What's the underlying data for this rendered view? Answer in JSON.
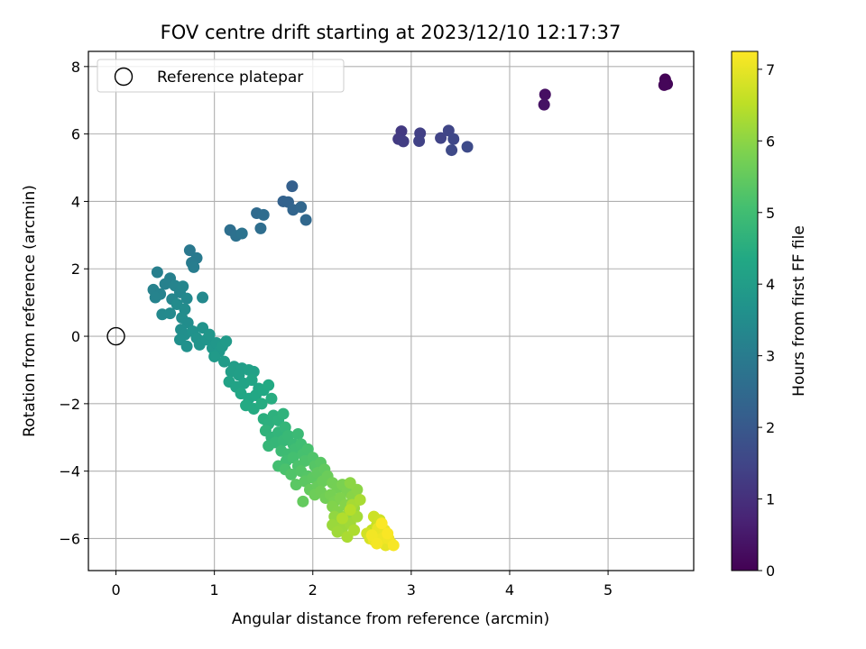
{
  "chart_data": {
    "type": "scatter",
    "title": "FOV centre drift starting at 2023/12/10 12:17:37",
    "xlabel": "Angular distance from reference (arcmin)",
    "ylabel": "Rotation from reference (arcmin)",
    "xlim": [
      -0.28,
      5.87
    ],
    "ylim": [
      -6.95,
      8.45
    ],
    "xticks": [
      0,
      1,
      2,
      3,
      4,
      5
    ],
    "yticks": [
      -6,
      -4,
      -2,
      0,
      2,
      4,
      6,
      8
    ],
    "grid": true,
    "legend": {
      "position": "top-left",
      "entries": [
        "Reference platepar"
      ]
    },
    "reference_point": {
      "x": 0,
      "y": 0,
      "label": "Reference platepar"
    },
    "colorbar": {
      "label": "Hours from first FF file",
      "range": [
        0,
        7.25
      ],
      "ticks": [
        0,
        1,
        2,
        3,
        4,
        5,
        6,
        7
      ],
      "colormap": "viridis"
    },
    "points": [
      {
        "x": 5.58,
        "y": 7.62,
        "t": 0.05
      },
      {
        "x": 5.6,
        "y": 7.48,
        "t": 0.08
      },
      {
        "x": 5.57,
        "y": 7.45,
        "t": 0.1
      },
      {
        "x": 4.36,
        "y": 7.17,
        "t": 0.3
      },
      {
        "x": 4.35,
        "y": 6.87,
        "t": 0.35
      },
      {
        "x": 2.9,
        "y": 6.08,
        "t": 1.2
      },
      {
        "x": 2.87,
        "y": 5.85,
        "t": 1.25
      },
      {
        "x": 2.92,
        "y": 5.78,
        "t": 1.3
      },
      {
        "x": 3.09,
        "y": 6.02,
        "t": 1.35
      },
      {
        "x": 3.08,
        "y": 5.79,
        "t": 1.4
      },
      {
        "x": 3.3,
        "y": 5.88,
        "t": 1.45
      },
      {
        "x": 3.38,
        "y": 6.1,
        "t": 1.5
      },
      {
        "x": 3.43,
        "y": 5.85,
        "t": 1.55
      },
      {
        "x": 3.41,
        "y": 5.52,
        "t": 1.6
      },
      {
        "x": 3.57,
        "y": 5.62,
        "t": 1.65
      },
      {
        "x": 1.79,
        "y": 4.45,
        "t": 2.2
      },
      {
        "x": 1.7,
        "y": 4.0,
        "t": 2.25
      },
      {
        "x": 1.75,
        "y": 3.98,
        "t": 2.3
      },
      {
        "x": 1.8,
        "y": 3.75,
        "t": 2.35
      },
      {
        "x": 1.88,
        "y": 3.83,
        "t": 2.4
      },
      {
        "x": 1.93,
        "y": 3.45,
        "t": 2.45
      },
      {
        "x": 1.43,
        "y": 3.65,
        "t": 2.5
      },
      {
        "x": 1.5,
        "y": 3.6,
        "t": 2.55
      },
      {
        "x": 1.47,
        "y": 3.2,
        "t": 2.6
      },
      {
        "x": 1.16,
        "y": 3.15,
        "t": 2.65
      },
      {
        "x": 1.22,
        "y": 2.98,
        "t": 2.7
      },
      {
        "x": 1.28,
        "y": 3.05,
        "t": 2.75
      },
      {
        "x": 0.75,
        "y": 2.55,
        "t": 2.9
      },
      {
        "x": 0.82,
        "y": 2.32,
        "t": 2.95
      },
      {
        "x": 0.77,
        "y": 2.18,
        "t": 3.0
      },
      {
        "x": 0.79,
        "y": 2.05,
        "t": 3.05
      },
      {
        "x": 0.42,
        "y": 1.9,
        "t": 3.1
      },
      {
        "x": 0.55,
        "y": 1.72,
        "t": 3.12
      },
      {
        "x": 0.5,
        "y": 1.55,
        "t": 3.15
      },
      {
        "x": 0.38,
        "y": 1.38,
        "t": 3.18
      },
      {
        "x": 0.45,
        "y": 1.25,
        "t": 3.2
      },
      {
        "x": 0.4,
        "y": 1.15,
        "t": 3.22
      },
      {
        "x": 0.6,
        "y": 1.5,
        "t": 3.25
      },
      {
        "x": 0.65,
        "y": 1.3,
        "t": 3.28
      },
      {
        "x": 0.57,
        "y": 1.1,
        "t": 3.3
      },
      {
        "x": 0.68,
        "y": 1.48,
        "t": 3.32
      },
      {
        "x": 0.72,
        "y": 1.12,
        "t": 3.35
      },
      {
        "x": 0.88,
        "y": 1.15,
        "t": 3.38
      },
      {
        "x": 0.47,
        "y": 0.65,
        "t": 3.4
      },
      {
        "x": 0.55,
        "y": 0.68,
        "t": 3.42
      },
      {
        "x": 0.62,
        "y": 0.95,
        "t": 3.45
      },
      {
        "x": 0.7,
        "y": 0.8,
        "t": 3.48
      },
      {
        "x": 0.67,
        "y": 0.55,
        "t": 3.5
      },
      {
        "x": 0.73,
        "y": 0.4,
        "t": 3.52
      },
      {
        "x": 0.66,
        "y": 0.2,
        "t": 3.55
      },
      {
        "x": 0.7,
        "y": 0.05,
        "t": 3.58
      },
      {
        "x": 0.65,
        "y": -0.1,
        "t": 3.6
      },
      {
        "x": 0.72,
        "y": -0.3,
        "t": 3.62
      },
      {
        "x": 0.78,
        "y": 0.15,
        "t": 3.65
      },
      {
        "x": 0.82,
        "y": -0.05,
        "t": 3.68
      },
      {
        "x": 0.88,
        "y": 0.25,
        "t": 3.7
      },
      {
        "x": 0.85,
        "y": -0.25,
        "t": 3.72
      },
      {
        "x": 0.92,
        "y": -0.1,
        "t": 3.75
      },
      {
        "x": 0.95,
        "y": 0.05,
        "t": 3.78
      },
      {
        "x": 0.98,
        "y": -0.35,
        "t": 3.8
      },
      {
        "x": 1.02,
        "y": -0.2,
        "t": 3.82
      },
      {
        "x": 1.05,
        "y": -0.45,
        "t": 3.85
      },
      {
        "x": 1.08,
        "y": -0.3,
        "t": 3.88
      },
      {
        "x": 1.12,
        "y": -0.15,
        "t": 3.9
      },
      {
        "x": 1.0,
        "y": -0.6,
        "t": 3.92
      },
      {
        "x": 1.1,
        "y": -0.75,
        "t": 3.95
      },
      {
        "x": 1.2,
        "y": -0.9,
        "t": 4.0
      },
      {
        "x": 1.28,
        "y": -0.95,
        "t": 4.03
      },
      {
        "x": 1.17,
        "y": -1.05,
        "t": 4.05
      },
      {
        "x": 1.25,
        "y": -1.15,
        "t": 4.08
      },
      {
        "x": 1.35,
        "y": -1.0,
        "t": 4.1
      },
      {
        "x": 1.4,
        "y": -1.05,
        "t": 4.12
      },
      {
        "x": 1.15,
        "y": -1.35,
        "t": 4.15
      },
      {
        "x": 1.22,
        "y": -1.5,
        "t": 4.18
      },
      {
        "x": 1.3,
        "y": -1.4,
        "t": 4.2
      },
      {
        "x": 1.38,
        "y": -1.3,
        "t": 4.22
      },
      {
        "x": 1.45,
        "y": -1.55,
        "t": 4.25
      },
      {
        "x": 1.27,
        "y": -1.7,
        "t": 4.28
      },
      {
        "x": 1.35,
        "y": -1.85,
        "t": 4.3
      },
      {
        "x": 1.42,
        "y": -1.75,
        "t": 4.32
      },
      {
        "x": 1.5,
        "y": -1.6,
        "t": 4.35
      },
      {
        "x": 1.55,
        "y": -1.45,
        "t": 4.38
      },
      {
        "x": 1.32,
        "y": -2.05,
        "t": 4.4
      },
      {
        "x": 1.4,
        "y": -2.15,
        "t": 4.42
      },
      {
        "x": 1.48,
        "y": -2.0,
        "t": 4.45
      },
      {
        "x": 1.58,
        "y": -1.85,
        "t": 4.48
      },
      {
        "x": 1.5,
        "y": -2.45,
        "t": 4.55
      },
      {
        "x": 1.55,
        "y": -2.6,
        "t": 4.58
      },
      {
        "x": 1.6,
        "y": -2.35,
        "t": 4.6
      },
      {
        "x": 1.65,
        "y": -2.5,
        "t": 4.62
      },
      {
        "x": 1.7,
        "y": -2.3,
        "t": 4.65
      },
      {
        "x": 1.52,
        "y": -2.8,
        "t": 4.68
      },
      {
        "x": 1.58,
        "y": -3.0,
        "t": 4.7
      },
      {
        "x": 1.65,
        "y": -2.85,
        "t": 4.72
      },
      {
        "x": 1.72,
        "y": -2.7,
        "t": 4.75
      },
      {
        "x": 1.62,
        "y": -3.15,
        "t": 4.78
      },
      {
        "x": 1.55,
        "y": -3.25,
        "t": 4.8
      },
      {
        "x": 1.7,
        "y": -3.1,
        "t": 4.82
      },
      {
        "x": 1.75,
        "y": -2.95,
        "t": 4.85
      },
      {
        "x": 1.8,
        "y": -3.2,
        "t": 4.88
      },
      {
        "x": 1.85,
        "y": -2.9,
        "t": 4.9
      },
      {
        "x": 1.68,
        "y": -3.4,
        "t": 4.92
      },
      {
        "x": 1.75,
        "y": -3.5,
        "t": 4.95
      },
      {
        "x": 1.82,
        "y": -3.35,
        "t": 4.98
      },
      {
        "x": 1.88,
        "y": -3.2,
        "t": 5.0
      },
      {
        "x": 1.73,
        "y": -3.7,
        "t": 5.02
      },
      {
        "x": 1.65,
        "y": -3.85,
        "t": 5.05
      },
      {
        "x": 1.8,
        "y": -3.6,
        "t": 5.08
      },
      {
        "x": 1.9,
        "y": -3.5,
        "t": 5.1
      },
      {
        "x": 1.95,
        "y": -3.35,
        "t": 5.12
      },
      {
        "x": 1.72,
        "y": -3.95,
        "t": 5.15
      },
      {
        "x": 1.85,
        "y": -3.85,
        "t": 5.18
      },
      {
        "x": 1.92,
        "y": -3.7,
        "t": 5.2
      },
      {
        "x": 2.0,
        "y": -3.6,
        "t": 5.22
      },
      {
        "x": 1.78,
        "y": -4.1,
        "t": 5.25
      },
      {
        "x": 1.88,
        "y": -4.0,
        "t": 5.28
      },
      {
        "x": 1.95,
        "y": -4.15,
        "t": 5.3
      },
      {
        "x": 2.02,
        "y": -3.85,
        "t": 5.32
      },
      {
        "x": 2.08,
        "y": -3.75,
        "t": 5.35
      },
      {
        "x": 1.83,
        "y": -4.4,
        "t": 5.38
      },
      {
        "x": 1.92,
        "y": -4.3,
        "t": 5.4
      },
      {
        "x": 2.0,
        "y": -4.2,
        "t": 5.42
      },
      {
        "x": 2.05,
        "y": -4.05,
        "t": 5.45
      },
      {
        "x": 2.12,
        "y": -3.95,
        "t": 5.48
      },
      {
        "x": 1.9,
        "y": -4.9,
        "t": 5.5
      },
      {
        "x": 1.97,
        "y": -4.55,
        "t": 5.52
      },
      {
        "x": 2.05,
        "y": -4.45,
        "t": 5.55
      },
      {
        "x": 2.1,
        "y": -4.3,
        "t": 5.58
      },
      {
        "x": 2.15,
        "y": -4.15,
        "t": 5.6
      },
      {
        "x": 2.02,
        "y": -4.7,
        "t": 5.62
      },
      {
        "x": 2.08,
        "y": -4.6,
        "t": 5.65
      },
      {
        "x": 2.13,
        "y": -4.8,
        "t": 5.68
      },
      {
        "x": 2.2,
        "y": -4.35,
        "t": 5.7
      },
      {
        "x": 2.25,
        "y": -4.5,
        "t": 5.72
      },
      {
        "x": 2.18,
        "y": -4.7,
        "t": 5.75
      },
      {
        "x": 2.22,
        "y": -4.9,
        "t": 5.78
      },
      {
        "x": 2.3,
        "y": -4.4,
        "t": 5.8
      },
      {
        "x": 2.35,
        "y": -4.6,
        "t": 5.82
      },
      {
        "x": 2.28,
        "y": -4.8,
        "t": 5.85
      },
      {
        "x": 2.2,
        "y": -5.05,
        "t": 5.88
      },
      {
        "x": 2.25,
        "y": -5.2,
        "t": 5.9
      },
      {
        "x": 2.33,
        "y": -5.0,
        "t": 5.92
      },
      {
        "x": 2.4,
        "y": -4.75,
        "t": 5.95
      },
      {
        "x": 2.45,
        "y": -4.55,
        "t": 5.98
      },
      {
        "x": 2.38,
        "y": -4.35,
        "t": 6.0
      },
      {
        "x": 2.22,
        "y": -5.35,
        "t": 6.05
      },
      {
        "x": 2.28,
        "y": -5.5,
        "t": 6.08
      },
      {
        "x": 2.35,
        "y": -5.3,
        "t": 6.1
      },
      {
        "x": 2.42,
        "y": -5.1,
        "t": 6.12
      },
      {
        "x": 2.2,
        "y": -5.6,
        "t": 6.15
      },
      {
        "x": 2.3,
        "y": -5.7,
        "t": 6.18
      },
      {
        "x": 2.25,
        "y": -5.8,
        "t": 6.2
      },
      {
        "x": 2.38,
        "y": -5.55,
        "t": 6.22
      },
      {
        "x": 2.45,
        "y": -5.35,
        "t": 6.25
      },
      {
        "x": 2.4,
        "y": -5.0,
        "t": 6.28
      },
      {
        "x": 2.48,
        "y": -4.85,
        "t": 6.3
      },
      {
        "x": 2.35,
        "y": -5.95,
        "t": 6.32
      },
      {
        "x": 2.42,
        "y": -5.75,
        "t": 6.35
      },
      {
        "x": 2.3,
        "y": -5.4,
        "t": 6.4
      },
      {
        "x": 2.38,
        "y": -5.15,
        "t": 6.45
      },
      {
        "x": 2.6,
        "y": -5.75,
        "t": 6.6
      },
      {
        "x": 2.65,
        "y": -5.6,
        "t": 6.65
      },
      {
        "x": 2.62,
        "y": -5.35,
        "t": 6.7
      },
      {
        "x": 2.68,
        "y": -5.45,
        "t": 6.72
      },
      {
        "x": 2.55,
        "y": -5.85,
        "t": 6.75
      },
      {
        "x": 2.58,
        "y": -6.0,
        "t": 6.78
      },
      {
        "x": 2.63,
        "y": -5.95,
        "t": 6.8
      },
      {
        "x": 2.7,
        "y": -5.8,
        "t": 6.82
      },
      {
        "x": 2.72,
        "y": -6.05,
        "t": 6.85
      },
      {
        "x": 2.75,
        "y": -5.9,
        "t": 6.88
      },
      {
        "x": 2.78,
        "y": -6.1,
        "t": 6.9
      },
      {
        "x": 2.8,
        "y": -6.15,
        "t": 6.92
      },
      {
        "x": 2.68,
        "y": -6.1,
        "t": 6.95
      },
      {
        "x": 2.74,
        "y": -6.2,
        "t": 6.98
      },
      {
        "x": 2.66,
        "y": -5.7,
        "t": 7.0
      },
      {
        "x": 2.73,
        "y": -5.75,
        "t": 7.02
      },
      {
        "x": 2.62,
        "y": -6.05,
        "t": 7.05
      },
      {
        "x": 2.7,
        "y": -6.0,
        "t": 7.08
      },
      {
        "x": 2.77,
        "y": -6.0,
        "t": 7.1
      },
      {
        "x": 2.6,
        "y": -5.9,
        "t": 7.12
      },
      {
        "x": 2.65,
        "y": -6.15,
        "t": 7.15
      },
      {
        "x": 2.82,
        "y": -6.2,
        "t": 7.18
      },
      {
        "x": 2.76,
        "y": -5.85,
        "t": 7.2
      },
      {
        "x": 2.7,
        "y": -5.55,
        "t": 7.22
      }
    ]
  }
}
